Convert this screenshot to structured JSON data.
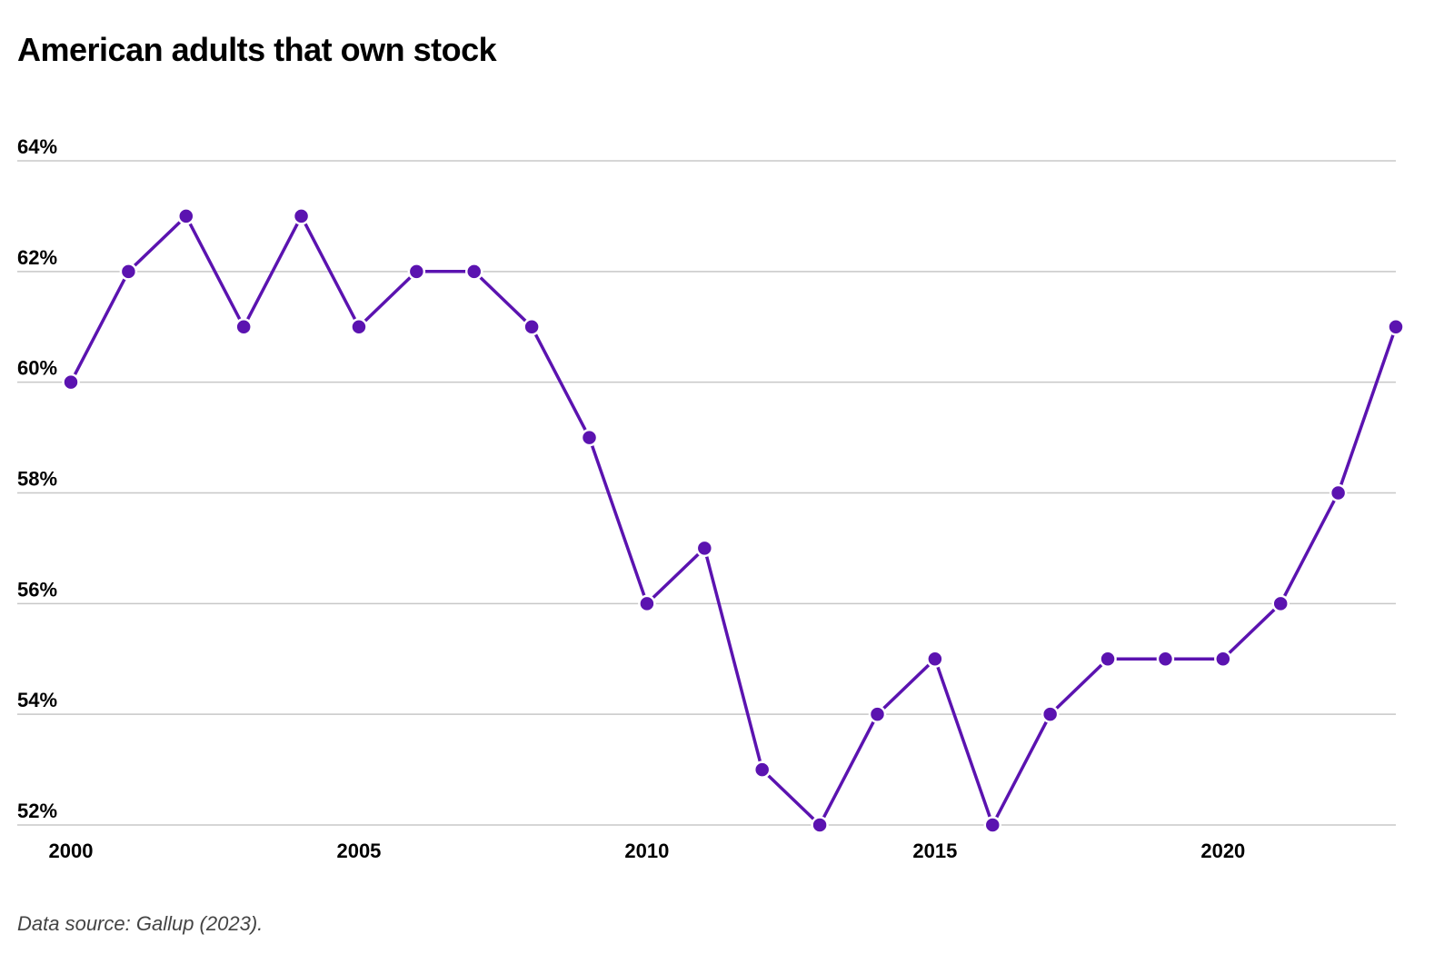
{
  "chart_data": {
    "type": "line",
    "title": "American adults that own stock",
    "xlabel": "",
    "ylabel": "",
    "xlim": [
      2000,
      2023
    ],
    "ylim": [
      52,
      64
    ],
    "y_ticks": [
      64,
      62,
      60,
      58,
      56,
      54,
      52
    ],
    "y_tick_labels": [
      "64%",
      "62%",
      "60%",
      "58%",
      "56%",
      "54%",
      "52%"
    ],
    "x_ticks": [
      2000,
      2005,
      2010,
      2015,
      2020
    ],
    "x_tick_labels": [
      "2000",
      "2005",
      "2010",
      "2015",
      "2020"
    ],
    "grid": "horizontal",
    "series": [
      {
        "color": "#5b13b0",
        "x": [
          2000,
          2001,
          2002,
          2003,
          2004,
          2005,
          2006,
          2007,
          2008,
          2009,
          2010,
          2011,
          2012,
          2013,
          2014,
          2015,
          2016,
          2017,
          2018,
          2019,
          2020,
          2021,
          2022,
          2023
        ],
        "values": [
          60,
          62,
          63,
          61,
          63,
          61,
          62,
          62,
          61,
          59,
          56,
          57,
          53,
          52,
          54,
          55,
          52,
          54,
          55,
          55,
          55,
          56,
          58,
          61
        ]
      }
    ],
    "source": "Data source: Gallup (2023)."
  }
}
